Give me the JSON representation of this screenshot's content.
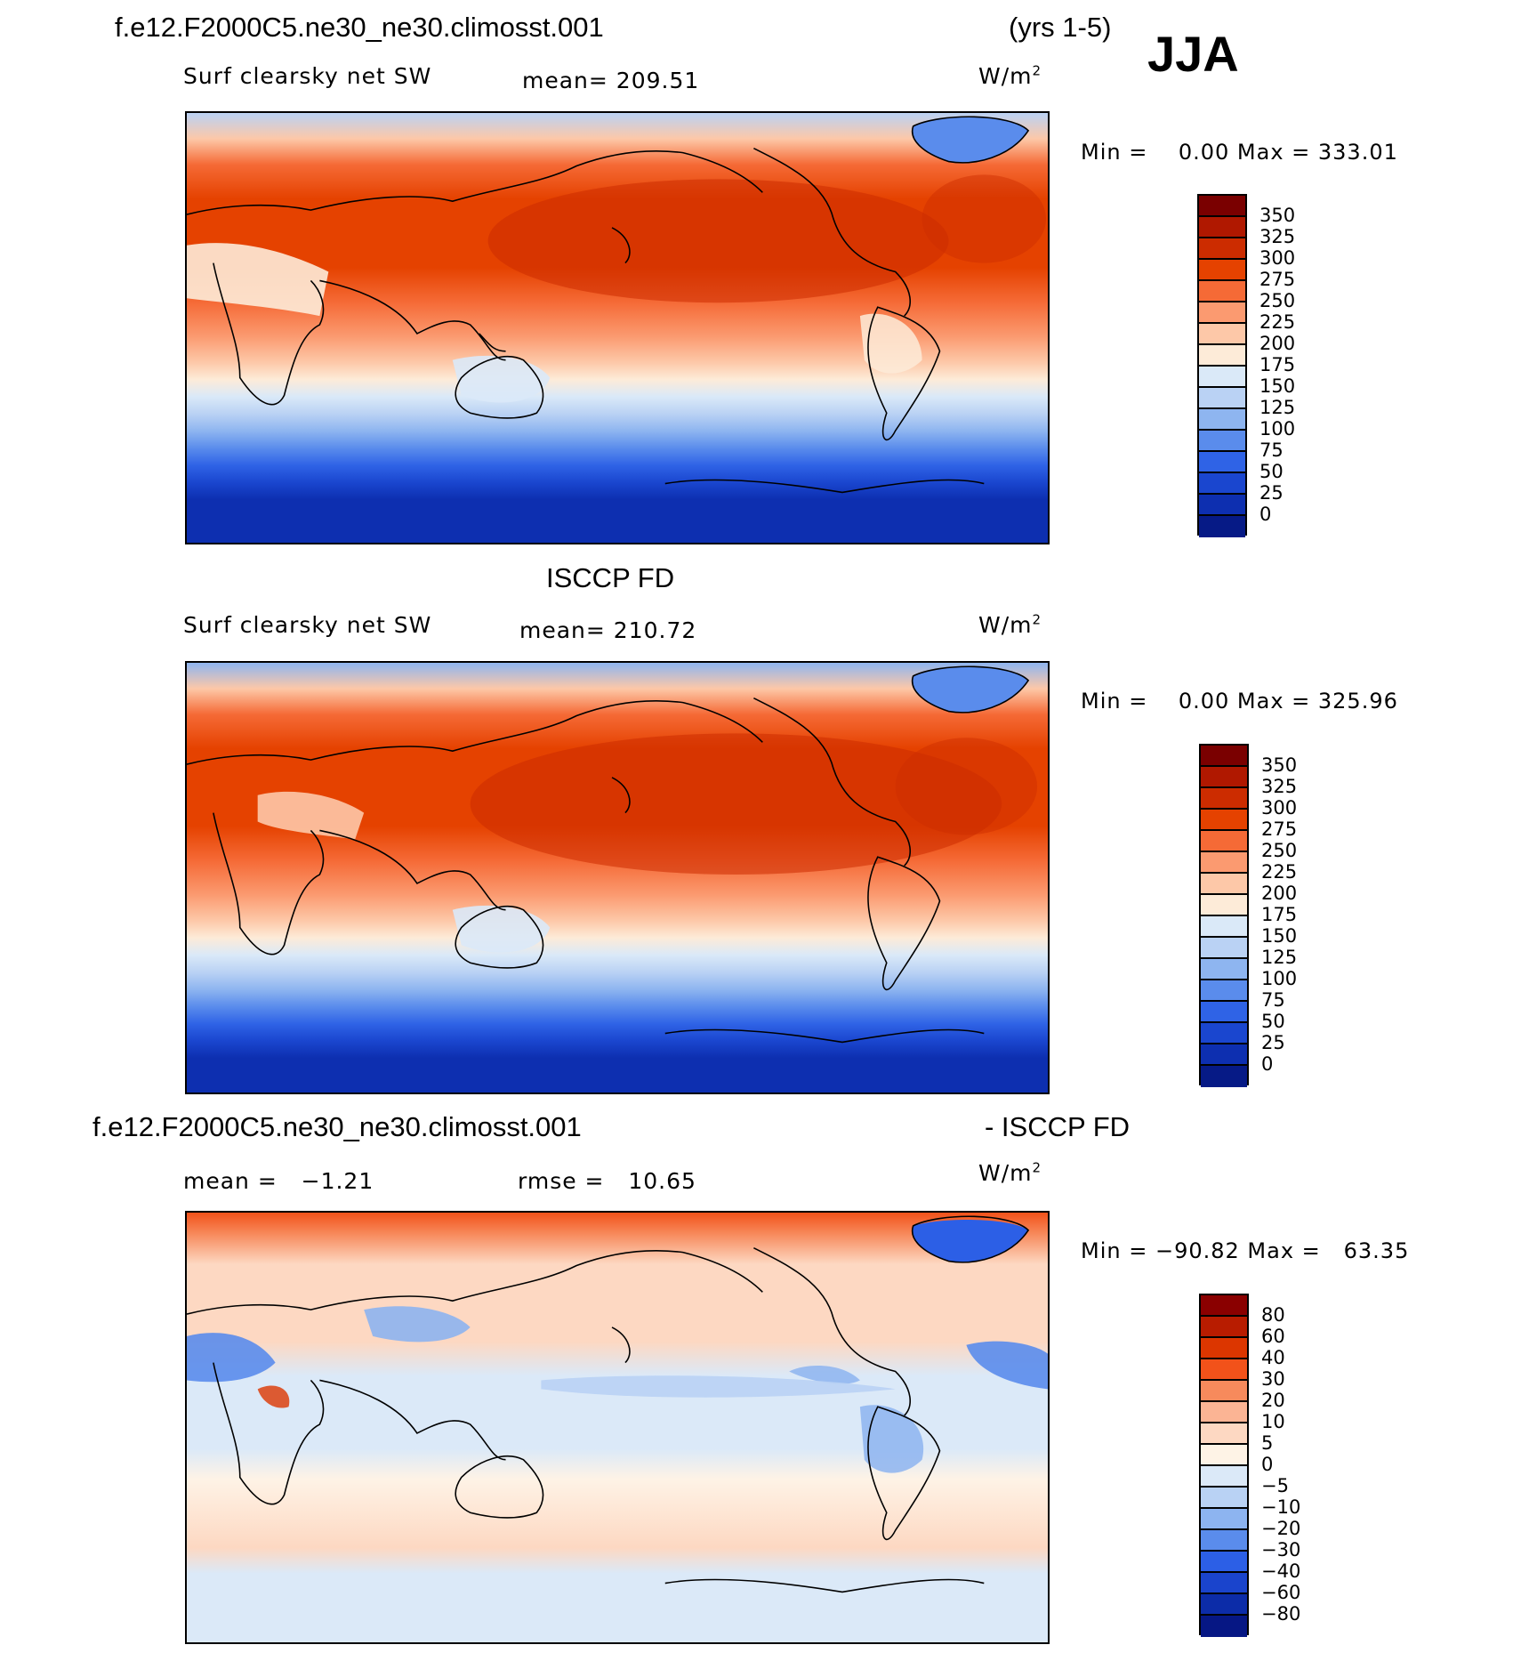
{
  "header": {
    "case_name": "f.e12.F2000C5.ne30_ne30.climosst.001",
    "years": "(yrs 1-5)",
    "season": "JJA"
  },
  "panels": [
    {
      "title": "",
      "left_label": "Surf clearsky net SW",
      "center_label": "mean= 209.51",
      "units": "W/m",
      "units_sup": "2",
      "minmax": "Min =    0.00 Max = 333.01",
      "levels": [
        "350",
        "325",
        "300",
        "275",
        "250",
        "225",
        "200",
        "175",
        "150",
        "125",
        "100",
        "75",
        "50",
        "25",
        "0"
      ],
      "colors": [
        "#7a0000",
        "#b01800",
        "#cc2c00",
        "#e54200",
        "#f56a36",
        "#fb9a70",
        "#fdc8a8",
        "#fdebd8",
        "#dae9f8",
        "#bad2f4",
        "#8eb5f0",
        "#5a8cec",
        "#2f63e6",
        "#1a46cf",
        "#0d2fb0",
        "#061a86"
      ]
    },
    {
      "title": "ISCCP FD",
      "left_label": "Surf clearsky net SW",
      "center_label": "mean= 210.72",
      "units": "W/m",
      "units_sup": "2",
      "minmax": "Min =    0.00 Max = 325.96",
      "levels": [
        "350",
        "325",
        "300",
        "275",
        "250",
        "225",
        "200",
        "175",
        "150",
        "125",
        "100",
        "75",
        "50",
        "25",
        "0"
      ],
      "colors": [
        "#7a0000",
        "#b01800",
        "#cc2c00",
        "#e54200",
        "#f56a36",
        "#fb9a70",
        "#fdc8a8",
        "#fdebd8",
        "#dae9f8",
        "#bad2f4",
        "#8eb5f0",
        "#5a8cec",
        "#2f63e6",
        "#1a46cf",
        "#0d2fb0",
        "#061a86"
      ]
    },
    {
      "title": "f.e12.F2000C5.ne30_ne30.climosst.001",
      "title_right": "- ISCCP FD",
      "left_label": "mean =   −1.21",
      "center_label": "rmse =   10.65",
      "units": "W/m",
      "units_sup": "2",
      "minmax": "Min = −90.82 Max =   63.35",
      "levels": [
        "80",
        "60",
        "40",
        "30",
        "20",
        "10",
        "5",
        "0",
        "−5",
        "−10",
        "−20",
        "−30",
        "−40",
        "−60",
        "−80"
      ],
      "colors": [
        "#8a0000",
        "#b81c00",
        "#dc3600",
        "#f2521a",
        "#f78a5c",
        "#fbb494",
        "#fdd8c2",
        "#fef3e6",
        "#dbe9f8",
        "#b9d2f4",
        "#8db4f0",
        "#5a8cec",
        "#2c5fe6",
        "#1a44cc",
        "#0c2ca8",
        "#061784"
      ]
    }
  ]
}
